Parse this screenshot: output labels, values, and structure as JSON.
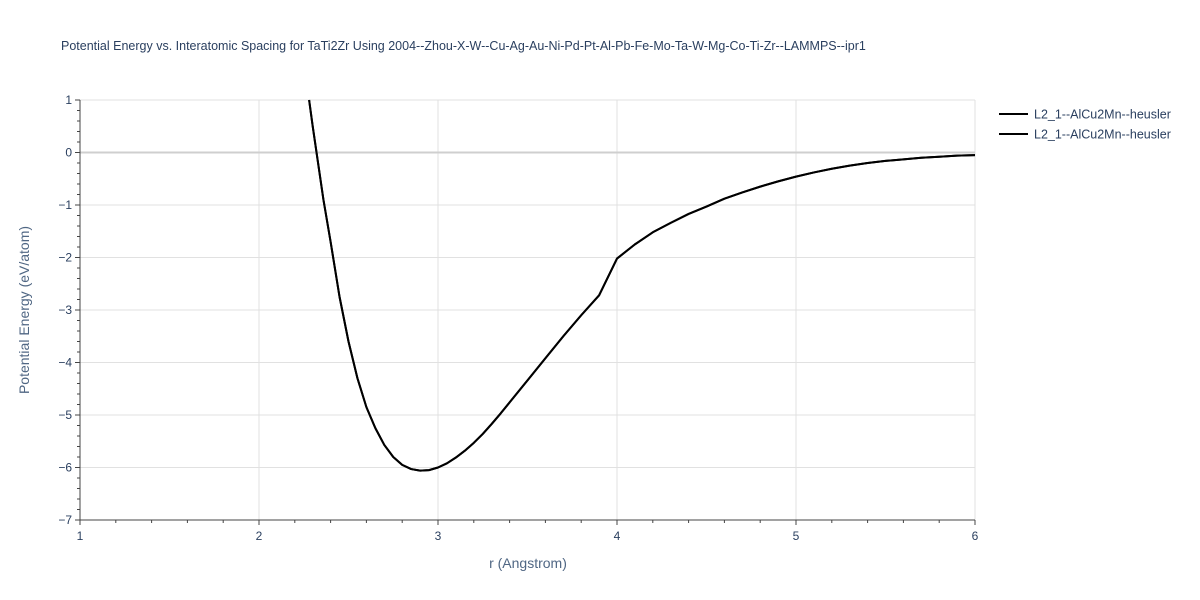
{
  "chart_data": {
    "type": "line",
    "title": "Potential Energy vs. Interatomic Spacing for TaTi2Zr Using 2004--Zhou-X-W--Cu-Ag-Au-Ni-Pd-Pt-Al-Pb-Fe-Mo-Ta-W-Mg-Co-Ti-Zr--LAMMPS--ipr1",
    "xlabel": "r (Angstrom)",
    "ylabel": "Potential Energy (eV/atom)",
    "xlim": [
      1,
      6
    ],
    "ylim": [
      -7,
      1
    ],
    "x_ticks": [
      1,
      2,
      3,
      4,
      5,
      6
    ],
    "x_tick_labels": [
      "1",
      "2",
      "3",
      "4",
      "5",
      "6"
    ],
    "y_ticks": [
      1,
      0,
      -1,
      -2,
      -3,
      -4,
      -5,
      -6,
      -7
    ],
    "y_tick_labels": [
      "1",
      "0",
      "−1",
      "−2",
      "−3",
      "−4",
      "−5",
      "−6",
      "−7"
    ],
    "grid": true,
    "legend_position": "top-right",
    "series": [
      {
        "name": "L2_1--AlCu2Mn--heusler",
        "color": "#000000",
        "x": [
          2.28,
          2.3,
          2.33,
          2.36,
          2.4,
          2.45,
          2.5,
          2.55,
          2.6,
          2.65,
          2.7,
          2.75,
          2.8,
          2.85,
          2.9,
          2.95,
          3.0,
          3.05,
          3.1,
          3.15,
          3.2,
          3.25,
          3.3,
          3.35,
          3.4,
          3.5,
          3.6,
          3.7,
          3.8,
          3.9,
          4.0,
          4.1,
          4.2,
          4.3,
          4.4,
          4.5,
          4.6,
          4.7,
          4.8,
          4.9,
          5.0,
          5.1,
          5.2,
          5.3,
          5.4,
          5.5,
          5.6,
          5.7,
          5.8,
          5.9,
          6.0
        ],
        "y": [
          1.0,
          0.5,
          -0.2,
          -0.9,
          -1.7,
          -2.75,
          -3.6,
          -4.3,
          -4.85,
          -5.25,
          -5.57,
          -5.8,
          -5.95,
          -6.03,
          -6.06,
          -6.05,
          -6.0,
          -5.92,
          -5.81,
          -5.68,
          -5.53,
          -5.36,
          -5.17,
          -4.97,
          -4.76,
          -4.34,
          -3.92,
          -3.5,
          -3.1,
          -2.72,
          -2.02,
          -1.75,
          -1.52,
          -1.34,
          -1.17,
          -1.03,
          -0.88,
          -0.76,
          -0.65,
          -0.55,
          -0.46,
          -0.38,
          -0.31,
          -0.25,
          -0.2,
          -0.16,
          -0.13,
          -0.1,
          -0.08,
          -0.06,
          -0.05
        ]
      },
      {
        "name": "L2_1--AlCu2Mn--heusler",
        "color": "#000000",
        "x": [
          2.28,
          2.3,
          2.33,
          2.36,
          2.4,
          2.45,
          2.5,
          2.55,
          2.6,
          2.65,
          2.7,
          2.75,
          2.8,
          2.85,
          2.9,
          2.95,
          3.0,
          3.05,
          3.1,
          3.15,
          3.2,
          3.25,
          3.3,
          3.35,
          3.4,
          3.5,
          3.6,
          3.7,
          3.8,
          3.9,
          4.0,
          4.1,
          4.2,
          4.3,
          4.4,
          4.5,
          4.6,
          4.7,
          4.8,
          4.9,
          5.0,
          5.1,
          5.2,
          5.3,
          5.4,
          5.5,
          5.6,
          5.7,
          5.8,
          5.9,
          6.0
        ],
        "y": [
          1.0,
          0.5,
          -0.2,
          -0.9,
          -1.7,
          -2.75,
          -3.6,
          -4.3,
          -4.85,
          -5.25,
          -5.57,
          -5.8,
          -5.95,
          -6.03,
          -6.06,
          -6.05,
          -6.0,
          -5.92,
          -5.81,
          -5.68,
          -5.53,
          -5.36,
          -5.17,
          -4.97,
          -4.76,
          -4.34,
          -3.92,
          -3.5,
          -3.1,
          -2.72,
          -2.02,
          -1.75,
          -1.52,
          -1.34,
          -1.17,
          -1.03,
          -0.88,
          -0.76,
          -0.65,
          -0.55,
          -0.46,
          -0.38,
          -0.31,
          -0.25,
          -0.2,
          -0.16,
          -0.13,
          -0.1,
          -0.08,
          -0.06,
          -0.05
        ]
      }
    ]
  }
}
